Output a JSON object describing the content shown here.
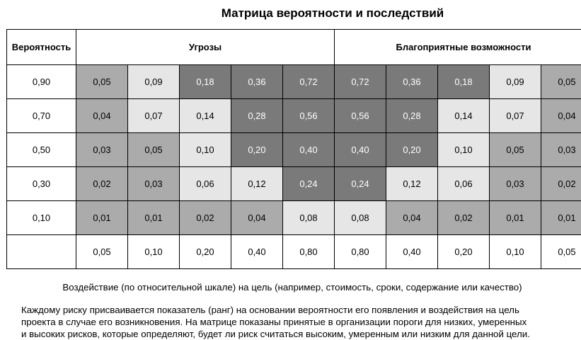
{
  "title": "Матрица вероятности и последствий",
  "header": {
    "probability": "Вероятность",
    "threats": "Угрозы",
    "opportunities": "Благоприятные возможности"
  },
  "colors": {
    "light": "#e6e6e6",
    "medium": "#ababab",
    "dark": "#7a7a7a",
    "white": "#ffffff"
  },
  "rows": [
    {
      "probability": "0,90",
      "cells": [
        {
          "value": "0,05",
          "shade": "medium"
        },
        {
          "value": "0,09",
          "shade": "light"
        },
        {
          "value": "0,18",
          "shade": "dark"
        },
        {
          "value": "0,36",
          "shade": "dark"
        },
        {
          "value": "0,72",
          "shade": "dark"
        },
        {
          "value": "0,72",
          "shade": "dark"
        },
        {
          "value": "0,36",
          "shade": "dark"
        },
        {
          "value": "0,18",
          "shade": "dark"
        },
        {
          "value": "0,09",
          "shade": "light"
        },
        {
          "value": "0,05",
          "shade": "medium"
        }
      ]
    },
    {
      "probability": "0,70",
      "cells": [
        {
          "value": "0,04",
          "shade": "medium"
        },
        {
          "value": "0,07",
          "shade": "light"
        },
        {
          "value": "0,14",
          "shade": "light"
        },
        {
          "value": "0,28",
          "shade": "dark"
        },
        {
          "value": "0,56",
          "shade": "dark"
        },
        {
          "value": "0,56",
          "shade": "dark"
        },
        {
          "value": "0,28",
          "shade": "dark"
        },
        {
          "value": "0,14",
          "shade": "light"
        },
        {
          "value": "0,07",
          "shade": "light"
        },
        {
          "value": "0,04",
          "shade": "medium"
        }
      ]
    },
    {
      "probability": "0,50",
      "cells": [
        {
          "value": "0,03",
          "shade": "medium"
        },
        {
          "value": "0,05",
          "shade": "medium"
        },
        {
          "value": "0,10",
          "shade": "light"
        },
        {
          "value": "0,20",
          "shade": "dark"
        },
        {
          "value": "0,40",
          "shade": "dark"
        },
        {
          "value": "0,40",
          "shade": "dark"
        },
        {
          "value": "0,20",
          "shade": "dark"
        },
        {
          "value": "0,10",
          "shade": "light"
        },
        {
          "value": "0,05",
          "shade": "medium"
        },
        {
          "value": "0,03",
          "shade": "medium"
        }
      ]
    },
    {
      "probability": "0,30",
      "cells": [
        {
          "value": "0,02",
          "shade": "medium"
        },
        {
          "value": "0,03",
          "shade": "medium"
        },
        {
          "value": "0,06",
          "shade": "light"
        },
        {
          "value": "0,12",
          "shade": "light"
        },
        {
          "value": "0,24",
          "shade": "dark"
        },
        {
          "value": "0,24",
          "shade": "dark"
        },
        {
          "value": "0,12",
          "shade": "light"
        },
        {
          "value": "0,06",
          "shade": "light"
        },
        {
          "value": "0,03",
          "shade": "medium"
        },
        {
          "value": "0,02",
          "shade": "medium"
        }
      ]
    },
    {
      "probability": "0,10",
      "cells": [
        {
          "value": "0,01",
          "shade": "medium"
        },
        {
          "value": "0,01",
          "shade": "medium"
        },
        {
          "value": "0,02",
          "shade": "medium"
        },
        {
          "value": "0,04",
          "shade": "medium"
        },
        {
          "value": "0,08",
          "shade": "light"
        },
        {
          "value": "0,08",
          "shade": "light"
        },
        {
          "value": "0,04",
          "shade": "medium"
        },
        {
          "value": "0,02",
          "shade": "medium"
        },
        {
          "value": "0,01",
          "shade": "medium"
        },
        {
          "value": "0,01",
          "shade": "medium"
        }
      ]
    }
  ],
  "impact_values": [
    "0,05",
    "0,10",
    "0,20",
    "0,40",
    "0,80",
    "0,80",
    "0,40",
    "0,20",
    "0,10",
    "0,05"
  ],
  "caption": "Воздействие (по относительной шкале) на цель (например, стоимость, сроки, содержание или качество)",
  "note_lines": [
    "Каждому риску присваивается показатель (ранг) на основании вероятности его появления и воздействия на цель",
    "проекта в случае его возникновения. На матрице показаны принятые в организации пороги для низких, умеренных",
    "и высоких рисков, которые определяют, будет ли риск считаться высоким, умеренным или низким для данной цели."
  ]
}
